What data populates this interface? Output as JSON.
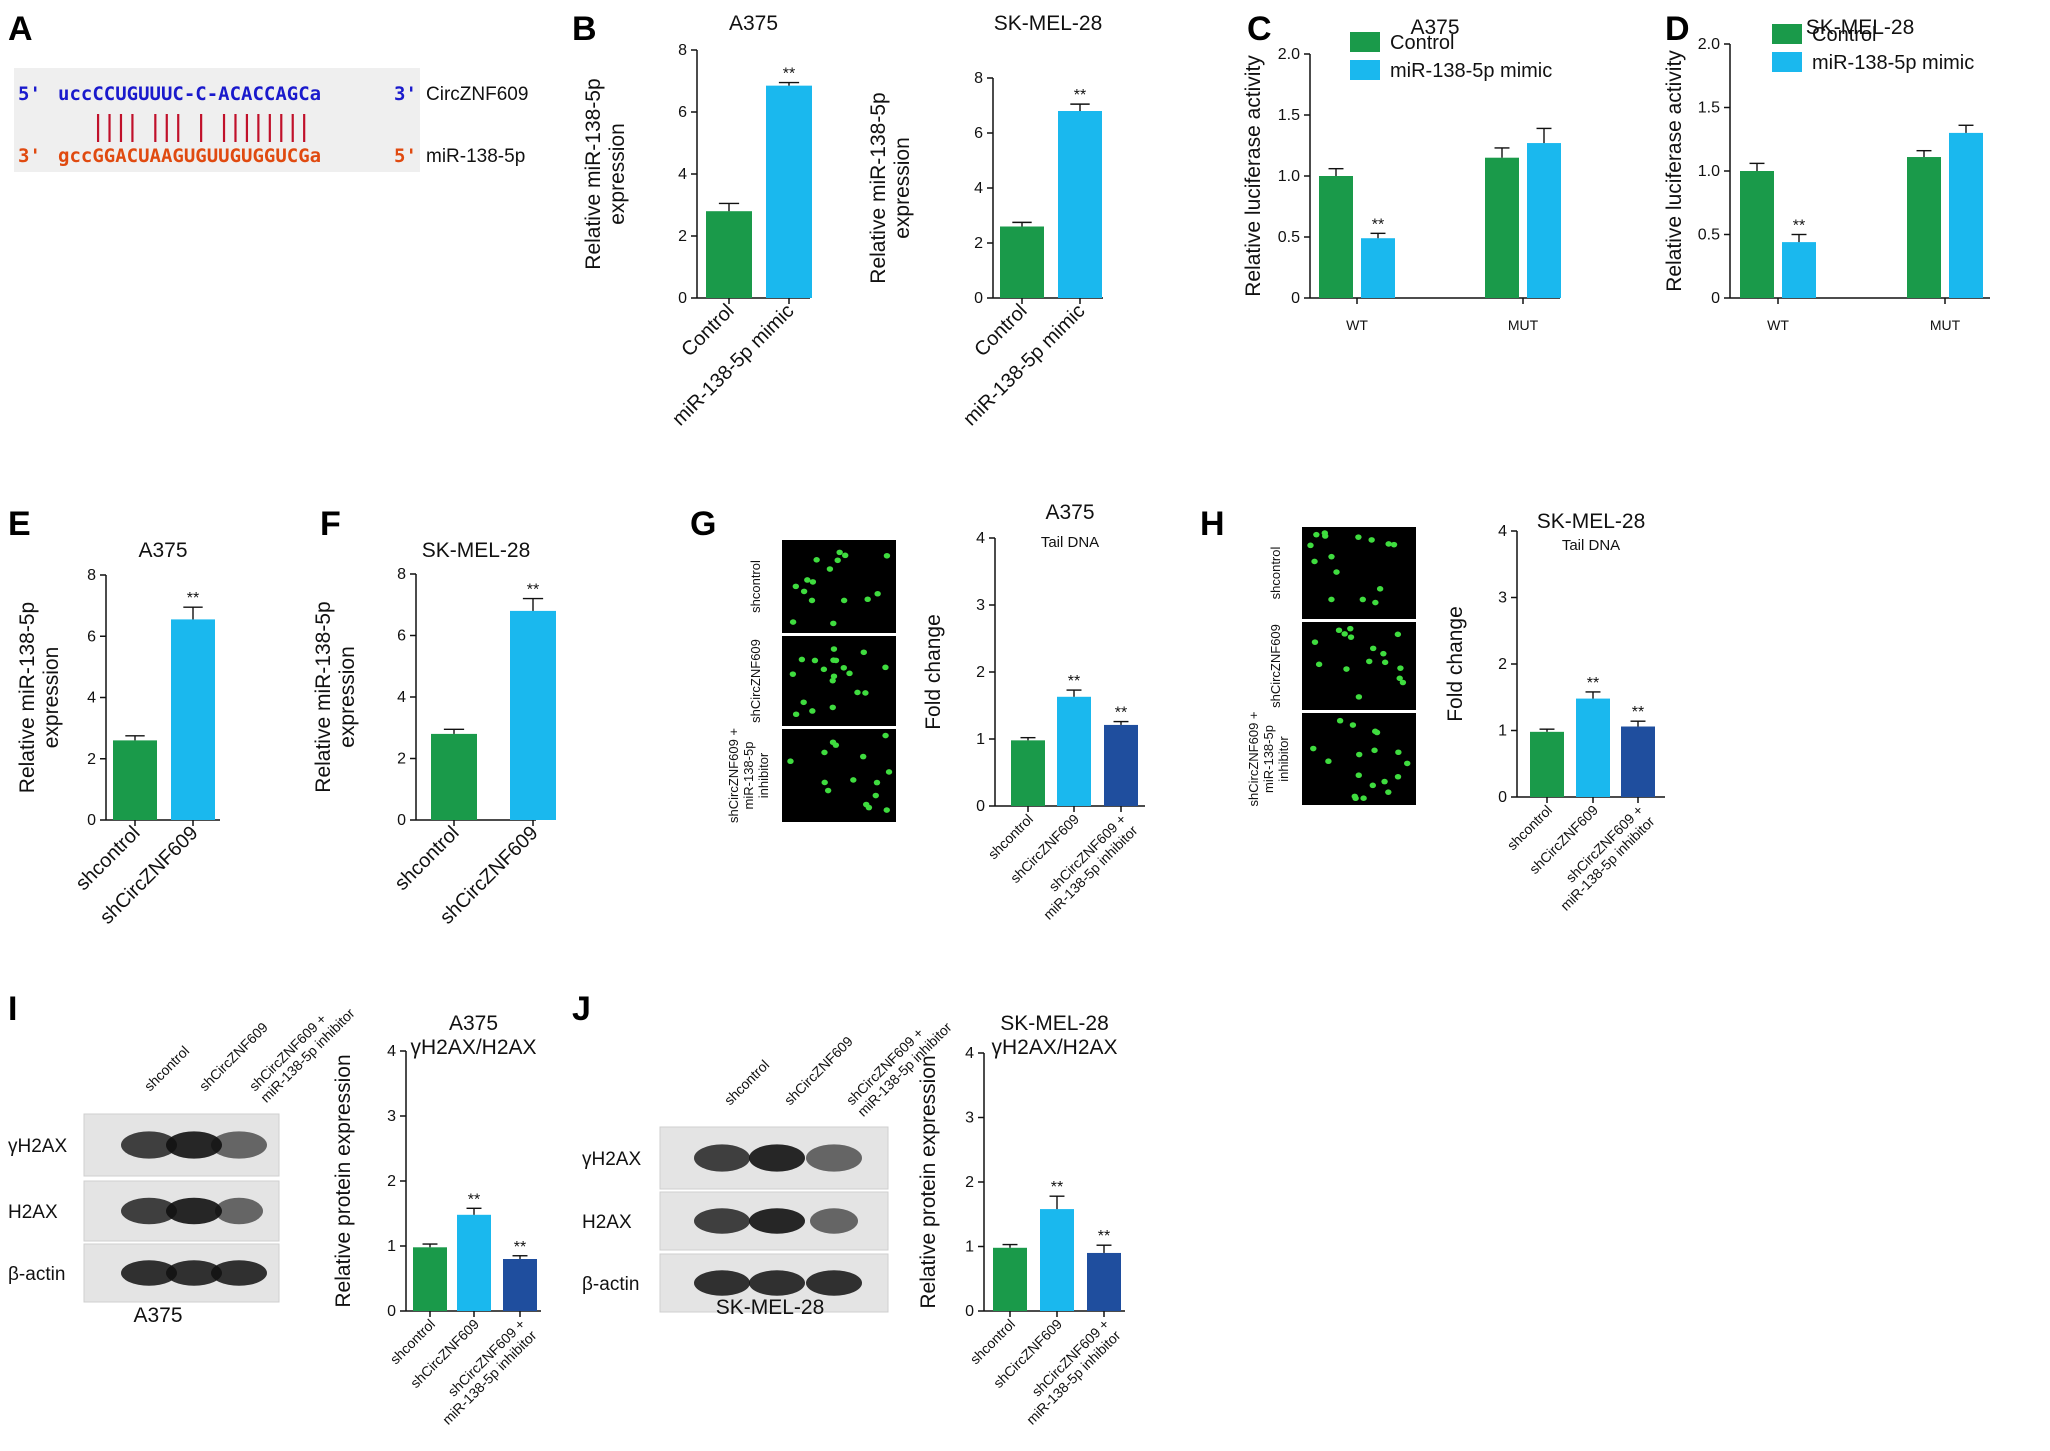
{
  "panel_a": {
    "letter": "A",
    "strand_top": {
      "five": "5'",
      "seq": "uccCCUGUUUC-C-ACACCAGCa",
      "three": "3'",
      "label": "CircZNF609"
    },
    "strand_bottom": {
      "three": "3'",
      "seq": "gccGGACUAAGUGUUGUGGUCGa",
      "five": "5'",
      "label": "miR-138-5p"
    }
  },
  "blots": {
    "I": {
      "letter": "I",
      "rows": [
        "γH2AX",
        "H2AX",
        "β-actin"
      ],
      "cols": [
        "shcontrol",
        "shCircZNF609",
        "shCircZNF609 +\nmiR-138-5p inhibitor"
      ],
      "caption": "A375"
    },
    "J": {
      "letter": "J",
      "rows": [
        "γH2AX",
        "H2AX",
        "β-actin"
      ],
      "cols": [
        "shcontrol",
        "shCircZNF609",
        "shCircZNF609 +\nmiR-138-5p inhibitor"
      ],
      "caption": "SK-MEL-28"
    }
  },
  "comet": {
    "G": {
      "rows": [
        "shcontrol",
        "shCircZNF609",
        "shCircZNF609 +\nmiR-138-5p\ninhibitor"
      ]
    },
    "H": {
      "rows": [
        "shcontrol",
        "shCircZNF609",
        "shCircZNF609 +\nmiR-138-5p\ninhibitor"
      ]
    }
  },
  "colors": {
    "green": "#1a9a4a",
    "cyan": "#1ab8ee",
    "navy": "#1f4e9e",
    "seq_blue": "#1a1acc",
    "seq_red": "#e04a10",
    "pair": "#c0102a"
  },
  "chart_data": [
    {
      "id": "B1",
      "letter": "B",
      "type": "bar",
      "title": "A375",
      "ylabel": "Relative miR-138-5p\nexpression",
      "categories": [
        "Control",
        "miR-138-5p mimic"
      ],
      "values": [
        2.8,
        6.85
      ],
      "errors": [
        0.25,
        0.1
      ],
      "sig": [
        "",
        "**"
      ],
      "ylim": [
        0,
        8
      ],
      "ticks": [
        0,
        2,
        4,
        6,
        8
      ]
    },
    {
      "id": "B2",
      "letter": "",
      "type": "bar",
      "title": "SK-MEL-28",
      "ylabel": "Relative miR-138-5p\nexpression",
      "categories": [
        "Control",
        "miR-138-5p mimic"
      ],
      "values": [
        2.6,
        6.8
      ],
      "errors": [
        0.15,
        0.25
      ],
      "sig": [
        "",
        "**"
      ],
      "ylim": [
        0,
        8
      ],
      "ticks": [
        0,
        2,
        4,
        6,
        8
      ]
    },
    {
      "id": "C",
      "letter": "C",
      "type": "bar",
      "title": "A375",
      "ylabel": "Relative luciferase activity",
      "categories": [
        "WT",
        "MUT"
      ],
      "series": [
        {
          "name": "Control",
          "values": [
            1.0,
            1.15
          ],
          "errors": [
            0.06,
            0.08
          ],
          "sig": [
            "",
            ""
          ]
        },
        {
          "name": "miR-138-5p mimic",
          "values": [
            0.49,
            1.27
          ],
          "errors": [
            0.04,
            0.12
          ],
          "sig": [
            "**",
            ""
          ]
        }
      ],
      "ylim": [
        0,
        2.0
      ],
      "ticks": [
        "0",
        "0.5",
        "1.0",
        "1.5",
        "2.0"
      ]
    },
    {
      "id": "D",
      "letter": "D",
      "type": "bar",
      "title": "SK-MEL-28",
      "ylabel": "Relative luciferase activity",
      "categories": [
        "WT",
        "MUT"
      ],
      "series": [
        {
          "name": "Control",
          "values": [
            1.0,
            1.11
          ],
          "errors": [
            0.06,
            0.05
          ],
          "sig": [
            "",
            ""
          ]
        },
        {
          "name": "miR-138-5p mimic",
          "values": [
            0.44,
            1.3
          ],
          "errors": [
            0.06,
            0.06
          ],
          "sig": [
            "**",
            ""
          ]
        }
      ],
      "ylim": [
        0,
        2.0
      ],
      "ticks": [
        "0",
        "0.5",
        "1.0",
        "1.5",
        "2.0"
      ]
    },
    {
      "id": "E",
      "letter": "E",
      "type": "bar",
      "title": "A375",
      "ylabel": "Relative miR-138-5p\nexpression",
      "categories": [
        "shcontrol",
        "shCircZNF609"
      ],
      "values": [
        2.6,
        6.55
      ],
      "errors": [
        0.15,
        0.4
      ],
      "sig": [
        "",
        "**"
      ],
      "ylim": [
        0,
        8
      ],
      "ticks": [
        0,
        2,
        4,
        6,
        8
      ]
    },
    {
      "id": "F",
      "letter": "F",
      "type": "bar",
      "title": "SK-MEL-28",
      "ylabel": "Relative miR-138-5p\nexpression",
      "categories": [
        "shcontrol",
        "shCircZNF609"
      ],
      "values": [
        2.8,
        6.8
      ],
      "errors": [
        0.15,
        0.4
      ],
      "sig": [
        "",
        "**"
      ],
      "ylim": [
        0,
        8
      ],
      "ticks": [
        0,
        2,
        4,
        6,
        8
      ]
    },
    {
      "id": "G",
      "letter": "G",
      "type": "bar",
      "title": "A375",
      "subtitle": "Tail DNA",
      "ylabel": "Fold change",
      "categories": [
        "shcontrol",
        "shCircZNF609",
        "shCircZNF609 +\nmiR-138-5p inhibitor"
      ],
      "values": [
        0.98,
        1.63,
        1.21
      ],
      "errors": [
        0.04,
        0.1,
        0.05
      ],
      "sig": [
        "",
        "**",
        "**"
      ],
      "ylim": [
        0,
        4
      ],
      "ticks": [
        0,
        1,
        2,
        3,
        4
      ]
    },
    {
      "id": "H",
      "letter": "H",
      "type": "bar",
      "title": "SK-MEL-28",
      "subtitle": "Tail DNA",
      "ylabel": "Fold change",
      "categories": [
        "shcontrol",
        "shCircZNF609",
        "shCircZNF609 +\nmiR-138-5p inhibitor"
      ],
      "values": [
        0.98,
        1.48,
        1.06
      ],
      "errors": [
        0.04,
        0.1,
        0.08
      ],
      "sig": [
        "",
        "**",
        "**"
      ],
      "ylim": [
        0,
        4
      ],
      "ticks": [
        0,
        1,
        2,
        3,
        4
      ]
    },
    {
      "id": "I",
      "letter": "",
      "type": "bar",
      "title": "A375\nγH2AX/H2AX",
      "ylabel": "Relative protein expression",
      "categories": [
        "shcontrol",
        "shCircZNF609",
        "shCircZNF609 +\nmiR-138-5p inhibitor"
      ],
      "values": [
        0.98,
        1.48,
        0.8
      ],
      "errors": [
        0.05,
        0.1,
        0.05
      ],
      "sig": [
        "",
        "**",
        "**"
      ],
      "ylim": [
        0,
        4
      ],
      "ticks": [
        0,
        1,
        2,
        3,
        4
      ]
    },
    {
      "id": "J",
      "letter": "",
      "type": "bar",
      "title": "SK-MEL-28\nγH2AX/H2AX",
      "ylabel": "Relative protein expression",
      "categories": [
        "shcontrol",
        "shCircZNF609",
        "shCircZNF609 +\nmiR-138-5p inhibitor"
      ],
      "values": [
        0.98,
        1.58,
        0.9
      ],
      "errors": [
        0.05,
        0.2,
        0.12
      ],
      "sig": [
        "",
        "**",
        "**"
      ],
      "ylim": [
        0,
        4
      ],
      "ticks": [
        0,
        1,
        2,
        3,
        4
      ]
    }
  ]
}
